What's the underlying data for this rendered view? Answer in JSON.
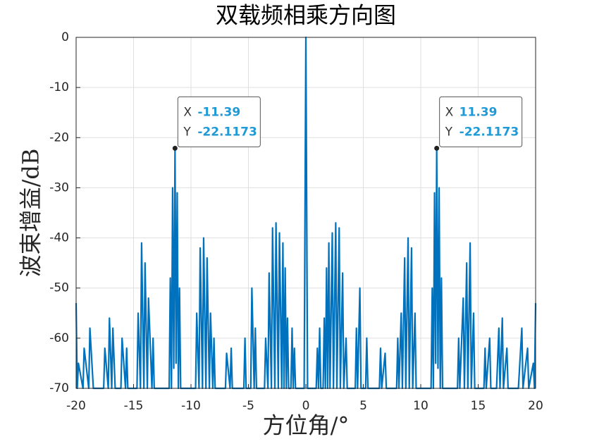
{
  "chart_data": {
    "type": "line",
    "title": "双载频相乘方向图",
    "x_label": "方位角/°",
    "y_label": "波束增益/dB",
    "color": "#0072bd",
    "grid": true,
    "xlim": [
      -20,
      20
    ],
    "ylim": [
      -70,
      0
    ],
    "xticks": [
      -20,
      -15,
      -10,
      -5,
      0,
      5,
      10,
      15,
      20
    ],
    "yticks": [
      -70,
      -60,
      -50,
      -40,
      -30,
      -20,
      -10,
      0
    ],
    "x": [
      -20,
      -19.9,
      -19.8,
      -19.4,
      -19.3,
      -18.9,
      -18.8,
      -18.5,
      -17.6,
      -17.5,
      -17.2,
      -17.1,
      -16.9,
      -16.8,
      -16.6,
      -16.1,
      -16.0,
      -15.7,
      -15.6,
      -15.5,
      -14.7,
      -14.6,
      -14.4,
      -14.3,
      -14.1,
      -14.0,
      -13.8,
      -13.7,
      -13.4,
      -13.3,
      -13.2,
      -12.5,
      -11.9,
      -11.8,
      -11.7,
      -11.6,
      -11.5,
      -11.39,
      -11.3,
      -11.2,
      -11.1,
      -11.0,
      -10.9,
      -9.6,
      -9.5,
      -9.3,
      -9.2,
      -9.0,
      -8.9,
      -8.7,
      -8.6,
      -8.4,
      -8.3,
      -8.1,
      -8.0,
      -7.9,
      -7.0,
      -6.9,
      -6.6,
      -6.5,
      -6.4,
      -5.4,
      -5.3,
      -5.2,
      -4.8,
      -4.7,
      -4.5,
      -4.4,
      -4.3,
      -3.6,
      -3.5,
      -3.3,
      -3.2,
      -3.0,
      -2.9,
      -2.7,
      -2.6,
      -2.4,
      -2.3,
      -2.1,
      -2.0,
      -1.9,
      -1.8,
      -1.7,
      -1.6,
      -1.5,
      -1.3,
      -1.2,
      -1.1,
      -1.0,
      -0.9,
      -0.15,
      0,
      0.15,
      0.9,
      1.0,
      1.1,
      1.2,
      1.3,
      1.5,
      1.6,
      1.7,
      1.8,
      1.9,
      2.0,
      2.1,
      2.3,
      2.4,
      2.6,
      2.7,
      2.9,
      3.0,
      3.2,
      3.3,
      3.5,
      3.6,
      4.3,
      4.4,
      4.5,
      4.7,
      4.8,
      5.2,
      5.3,
      5.4,
      6.4,
      6.5,
      6.6,
      6.9,
      7.0,
      7.9,
      8.0,
      8.1,
      8.3,
      8.4,
      8.6,
      8.7,
      8.9,
      9.0,
      9.2,
      9.3,
      9.5,
      9.6,
      10.9,
      11.0,
      11.1,
      11.2,
      11.3,
      11.39,
      11.5,
      11.6,
      11.7,
      11.8,
      11.9,
      12.5,
      13.2,
      13.3,
      13.4,
      13.7,
      13.8,
      14.0,
      14.1,
      14.3,
      14.4,
      14.6,
      14.7,
      15.5,
      15.6,
      15.7,
      16.0,
      16.1,
      16.6,
      16.8,
      16.9,
      17.1,
      17.2,
      17.5,
      17.6,
      18.5,
      18.8,
      18.9,
      19.3,
      19.4,
      19.8,
      19.9,
      20
    ],
    "values": [
      -53,
      -70,
      -65,
      -70,
      -62,
      -70,
      -58,
      -70,
      -70,
      -62,
      -70,
      -56,
      -70,
      -58,
      -70,
      -70,
      -60,
      -70,
      -62,
      -70,
      -70,
      -55,
      -70,
      -41,
      -70,
      -45,
      -70,
      -52,
      -70,
      -60,
      -70,
      -70,
      -70,
      -48,
      -70,
      -30,
      -66,
      -22.1173,
      -65,
      -31,
      -70,
      -50,
      -70,
      -70,
      -55,
      -70,
      -42,
      -70,
      -40,
      -70,
      -44,
      -70,
      -55,
      -70,
      -60,
      -70,
      -70,
      -63,
      -70,
      -62,
      -70,
      -70,
      -60,
      -70,
      -70,
      -50,
      -70,
      -58,
      -70,
      -70,
      -60,
      -70,
      -47,
      -70,
      -38,
      -70,
      -37,
      -70,
      -39,
      -70,
      -41,
      -70,
      -46,
      -70,
      -56,
      -70,
      -70,
      -58,
      -70,
      -62,
      -70,
      -70,
      0,
      -70,
      -70,
      -62,
      -70,
      -58,
      -70,
      -70,
      -56,
      -70,
      -46,
      -70,
      -41,
      -70,
      -39,
      -70,
      -37,
      -70,
      -38,
      -70,
      -47,
      -70,
      -60,
      -70,
      -70,
      -58,
      -70,
      -50,
      -70,
      -70,
      -60,
      -70,
      -70,
      -62,
      -70,
      -63,
      -70,
      -70,
      -60,
      -70,
      -55,
      -70,
      -44,
      -70,
      -40,
      -70,
      -42,
      -70,
      -55,
      -70,
      -70,
      -50,
      -70,
      -31,
      -65,
      -22.1173,
      -66,
      -30,
      -70,
      -48,
      -70,
      -70,
      -70,
      -60,
      -70,
      -52,
      -70,
      -45,
      -70,
      -41,
      -70,
      -55,
      -70,
      -70,
      -62,
      -70,
      -60,
      -70,
      -70,
      -58,
      -70,
      -56,
      -70,
      -62,
      -70,
      -70,
      -58,
      -70,
      -62,
      -70,
      -65,
      -70,
      -53
    ],
    "datatips": [
      {
        "x_label": "X",
        "x": -11.39,
        "y_label": "Y",
        "y": -22.1173
      },
      {
        "x_label": "X",
        "x": 11.39,
        "y_label": "Y",
        "y": -22.1173
      }
    ]
  }
}
